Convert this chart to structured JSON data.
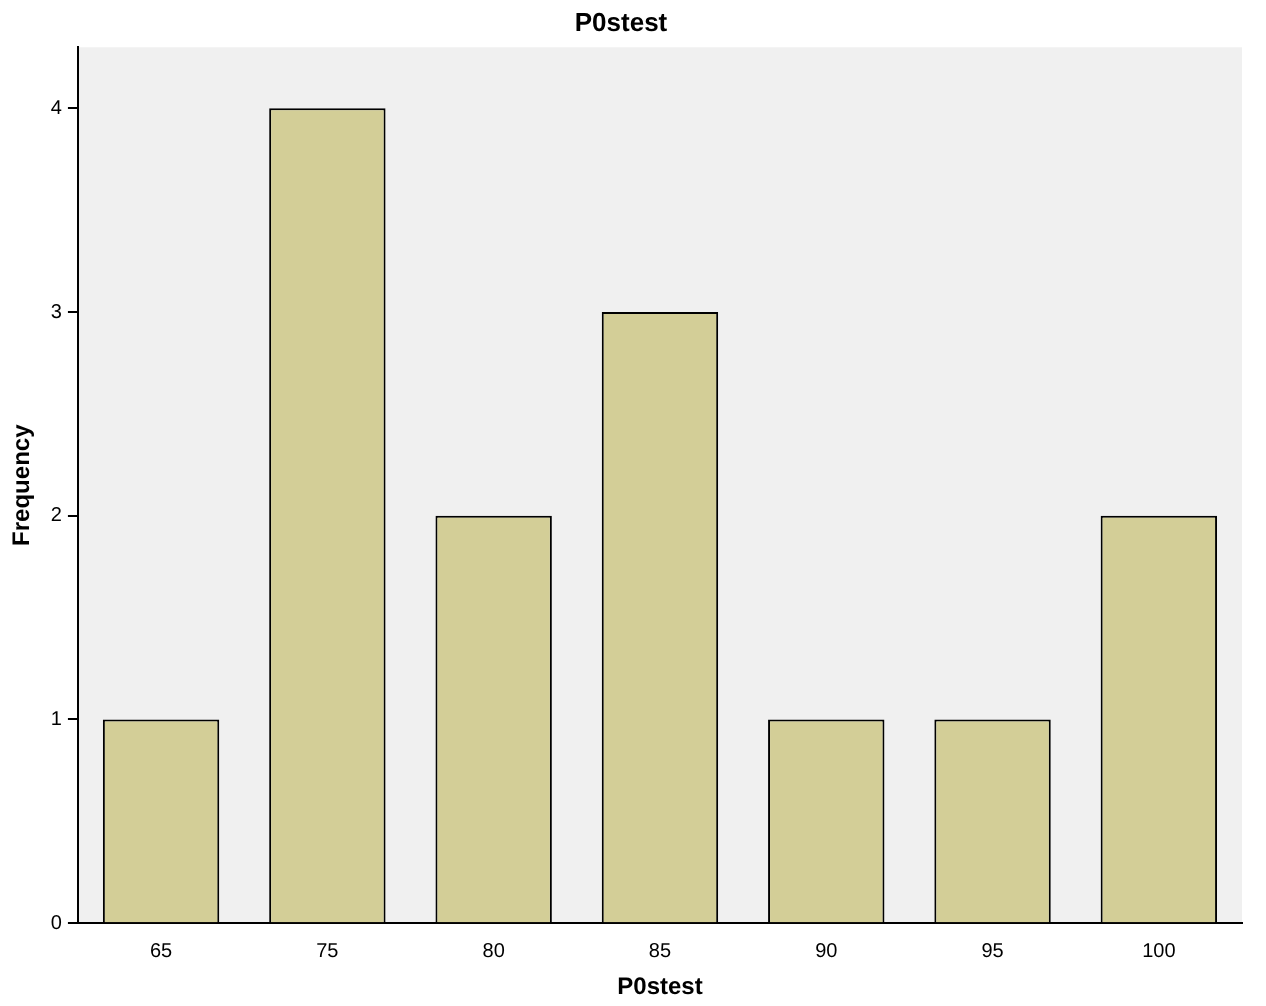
{
  "chart_data": {
    "type": "bar",
    "title": "P0stest",
    "xlabel": "P0stest",
    "ylabel": "Frequency",
    "categories": [
      "65",
      "75",
      "80",
      "85",
      "90",
      "95",
      "100"
    ],
    "values": [
      1,
      4,
      2,
      3,
      1,
      1,
      2
    ],
    "color": "#d3ce97",
    "ylim": [
      0,
      4.3
    ],
    "yticks": [
      0,
      1,
      2,
      3,
      4
    ]
  }
}
